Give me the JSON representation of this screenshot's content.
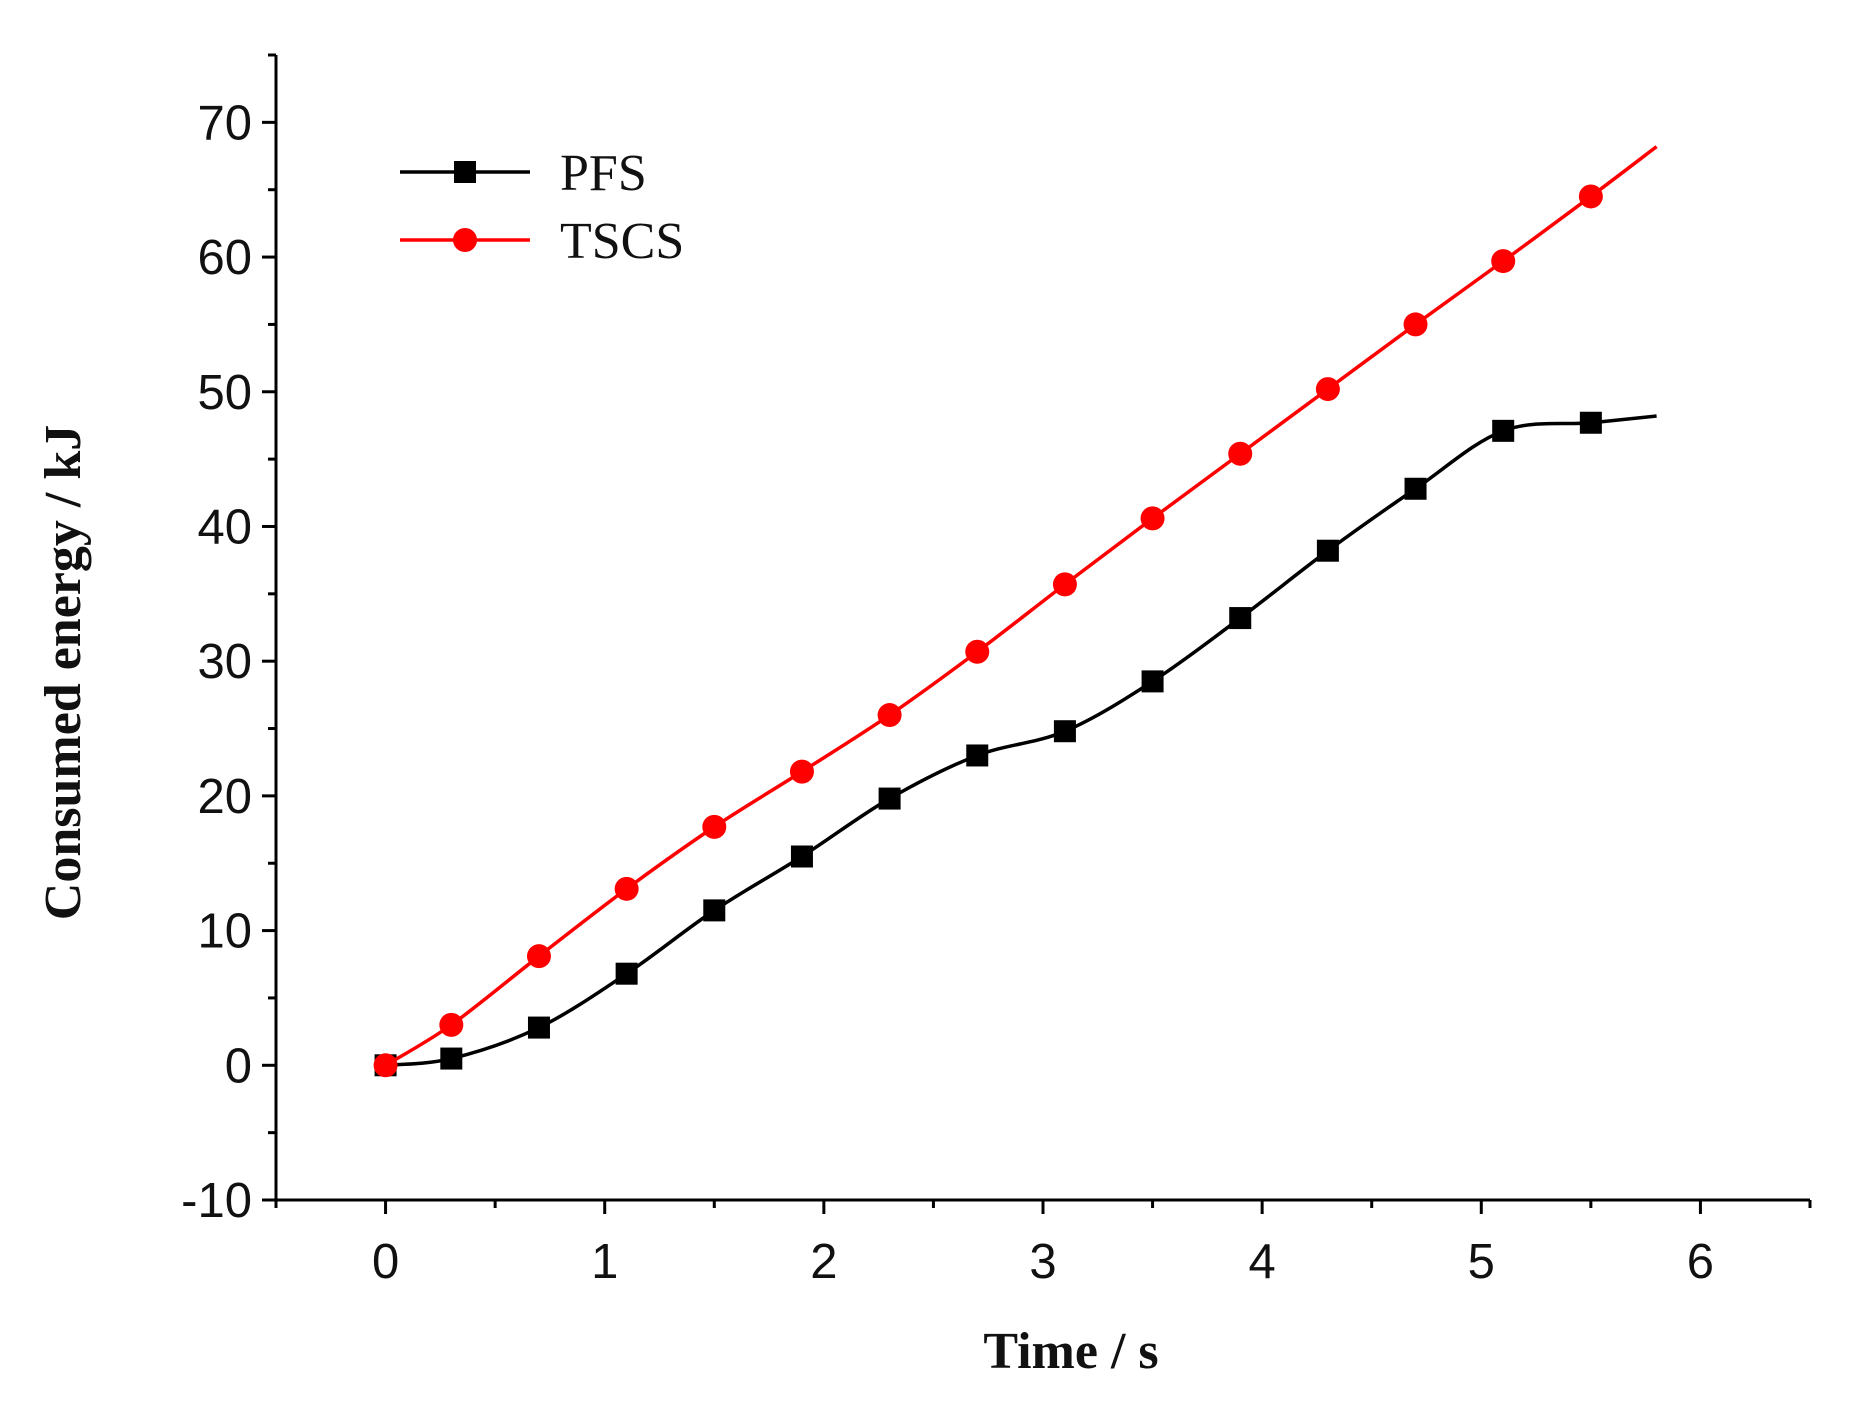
{
  "chart_data": {
    "type": "line",
    "title": "",
    "xlabel": "Time / s",
    "ylabel": "Consumed energy  / kJ",
    "xlim": [
      -0.5,
      6.5
    ],
    "ylim": [
      -10,
      75
    ],
    "xticks": [
      0,
      1,
      2,
      3,
      4,
      5,
      6
    ],
    "xtick_labels": [
      "0",
      "1",
      "2",
      "3",
      "4",
      "5",
      "6"
    ],
    "xminor_ticks": [
      -0.5,
      0.5,
      1.5,
      2.5,
      3.5,
      4.5,
      5.5,
      6.5
    ],
    "yticks": [
      -10,
      0,
      10,
      20,
      30,
      40,
      50,
      60,
      70
    ],
    "ytick_labels": [
      "-10",
      "0",
      "10",
      "20",
      "30",
      "40",
      "50",
      "60",
      "70"
    ],
    "yminor_ticks": [
      -5,
      5,
      15,
      25,
      35,
      45,
      55,
      65,
      75
    ],
    "grid": false,
    "legend": "top-left",
    "series": [
      {
        "name": "PFS",
        "color": "#000000",
        "marker": "square",
        "x": [
          0,
          0.3,
          0.7,
          1.1,
          1.5,
          1.9,
          2.3,
          2.7,
          3.1,
          3.5,
          3.9,
          4.3,
          4.7,
          5.1,
          5.5
        ],
        "values": [
          0,
          0.5,
          2.8,
          6.8,
          11.5,
          15.5,
          19.8,
          23.0,
          24.8,
          28.5,
          33.2,
          38.2,
          42.8,
          47.1,
          47.7
        ],
        "end": [
          5.8,
          48.2
        ]
      },
      {
        "name": "TSCS",
        "color": "#ff0000",
        "marker": "circle",
        "x": [
          0,
          0.3,
          0.7,
          1.1,
          1.5,
          1.9,
          2.3,
          2.7,
          3.1,
          3.5,
          3.9,
          4.3,
          4.7,
          5.1,
          5.5
        ],
        "values": [
          0,
          3.0,
          8.1,
          13.1,
          17.7,
          21.8,
          26.0,
          30.7,
          35.7,
          40.6,
          45.4,
          50.2,
          55.0,
          59.7,
          64.5
        ],
        "end": [
          5.8,
          68.2
        ]
      }
    ]
  }
}
